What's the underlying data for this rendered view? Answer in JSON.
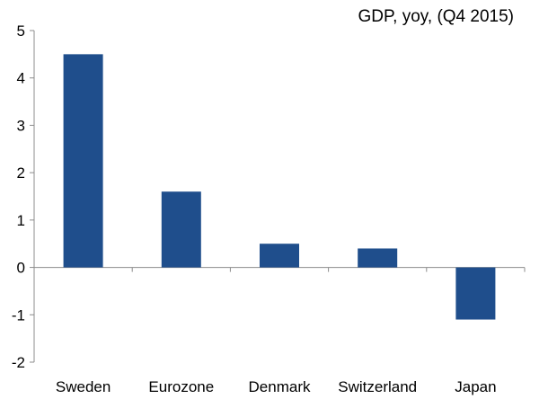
{
  "chart_data": {
    "type": "bar",
    "title": "GDP, yoy, (Q4 2015)",
    "categories": [
      "Sweden",
      "Eurozone",
      "Denmark",
      "Switzerland",
      "Japan"
    ],
    "values": [
      4.5,
      1.6,
      0.5,
      0.4,
      -1.1
    ],
    "ylim": [
      -2,
      5
    ],
    "yticks": [
      "5",
      "4",
      "3",
      "2",
      "1",
      "0",
      "-1",
      "-2"
    ],
    "xlabel": "",
    "ylabel": "",
    "grid": false,
    "legend": "none",
    "bar_color": "#1f4e8c",
    "axis_color": "#8c8c8c"
  }
}
